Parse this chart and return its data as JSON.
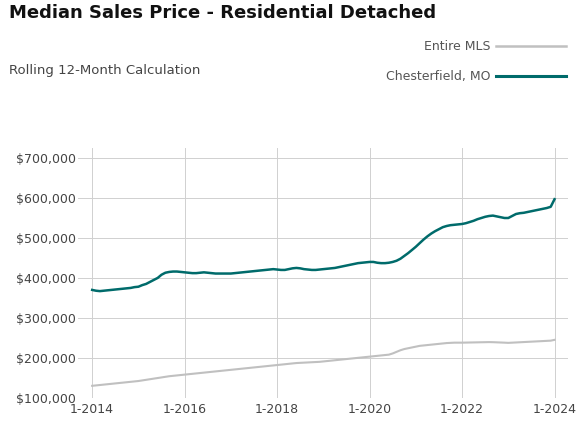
{
  "title": "Median Sales Price - Residential Detached",
  "subtitle": "Rolling 12-Month Calculation",
  "legend_labels": [
    "Entire MLS",
    "Chesterfield, MO"
  ],
  "mls_color": "#c0c0c0",
  "chesterfield_color": "#006b6b",
  "background_color": "#ffffff",
  "grid_color": "#d0d0d0",
  "title_fontsize": 13,
  "subtitle_fontsize": 9.5,
  "legend_fontsize": 9,
  "tick_fontsize": 9,
  "ylim": [
    100000,
    725000
  ],
  "yticks": [
    100000,
    200000,
    300000,
    400000,
    500000,
    600000,
    700000
  ],
  "xtick_years": [
    2014,
    2016,
    2018,
    2020,
    2022,
    2024
  ],
  "xlim_left": 2013.7,
  "xlim_right": 2024.3,
  "chesterfield_x": [
    2014.0,
    2014.083,
    2014.167,
    2014.25,
    2014.333,
    2014.417,
    2014.5,
    2014.583,
    2014.667,
    2014.75,
    2014.833,
    2014.917,
    2015.0,
    2015.083,
    2015.167,
    2015.25,
    2015.333,
    2015.417,
    2015.5,
    2015.583,
    2015.667,
    2015.75,
    2015.833,
    2015.917,
    2016.0,
    2016.083,
    2016.167,
    2016.25,
    2016.333,
    2016.417,
    2016.5,
    2016.583,
    2016.667,
    2016.75,
    2016.833,
    2016.917,
    2017.0,
    2017.083,
    2017.167,
    2017.25,
    2017.333,
    2017.417,
    2017.5,
    2017.583,
    2017.667,
    2017.75,
    2017.833,
    2017.917,
    2018.0,
    2018.083,
    2018.167,
    2018.25,
    2018.333,
    2018.417,
    2018.5,
    2018.583,
    2018.667,
    2018.75,
    2018.833,
    2018.917,
    2019.0,
    2019.083,
    2019.167,
    2019.25,
    2019.333,
    2019.417,
    2019.5,
    2019.583,
    2019.667,
    2019.75,
    2019.833,
    2019.917,
    2020.0,
    2020.083,
    2020.167,
    2020.25,
    2020.333,
    2020.417,
    2020.5,
    2020.583,
    2020.667,
    2020.75,
    2020.833,
    2020.917,
    2021.0,
    2021.083,
    2021.167,
    2021.25,
    2021.333,
    2021.417,
    2021.5,
    2021.583,
    2021.667,
    2021.75,
    2021.833,
    2021.917,
    2022.0,
    2022.083,
    2022.167,
    2022.25,
    2022.333,
    2022.417,
    2022.5,
    2022.583,
    2022.667,
    2022.75,
    2022.833,
    2022.917,
    2023.0,
    2023.083,
    2023.167,
    2023.25,
    2023.333,
    2023.417,
    2023.5,
    2023.583,
    2023.667,
    2023.75,
    2023.833,
    2023.917,
    2024.0
  ],
  "chesterfield_y": [
    370000,
    368000,
    367000,
    368000,
    369000,
    370000,
    371000,
    372000,
    373000,
    374000,
    375000,
    377000,
    378000,
    382000,
    385000,
    390000,
    395000,
    400000,
    408000,
    413000,
    415000,
    416000,
    416000,
    415000,
    414000,
    413000,
    412000,
    412000,
    413000,
    414000,
    413000,
    412000,
    411000,
    411000,
    411000,
    411000,
    411000,
    412000,
    413000,
    414000,
    415000,
    416000,
    417000,
    418000,
    419000,
    420000,
    421000,
    422000,
    421000,
    420000,
    420000,
    422000,
    424000,
    425000,
    424000,
    422000,
    421000,
    420000,
    420000,
    421000,
    422000,
    423000,
    424000,
    425000,
    427000,
    429000,
    431000,
    433000,
    435000,
    437000,
    438000,
    439000,
    440000,
    440000,
    438000,
    437000,
    437000,
    438000,
    440000,
    443000,
    448000,
    455000,
    462000,
    470000,
    478000,
    487000,
    496000,
    504000,
    511000,
    517000,
    522000,
    527000,
    530000,
    532000,
    533000,
    534000,
    535000,
    537000,
    540000,
    543000,
    547000,
    550000,
    553000,
    555000,
    556000,
    554000,
    552000,
    550000,
    550000,
    555000,
    560000,
    562000,
    563000,
    565000,
    567000,
    569000,
    571000,
    573000,
    575000,
    578000,
    597000
  ],
  "mls_x": [
    2014.0,
    2014.083,
    2014.167,
    2014.25,
    2014.333,
    2014.417,
    2014.5,
    2014.583,
    2014.667,
    2014.75,
    2014.833,
    2014.917,
    2015.0,
    2015.083,
    2015.167,
    2015.25,
    2015.333,
    2015.417,
    2015.5,
    2015.583,
    2015.667,
    2015.75,
    2015.833,
    2015.917,
    2016.0,
    2016.083,
    2016.167,
    2016.25,
    2016.333,
    2016.417,
    2016.5,
    2016.583,
    2016.667,
    2016.75,
    2016.833,
    2016.917,
    2017.0,
    2017.083,
    2017.167,
    2017.25,
    2017.333,
    2017.417,
    2017.5,
    2017.583,
    2017.667,
    2017.75,
    2017.833,
    2017.917,
    2018.0,
    2018.083,
    2018.167,
    2018.25,
    2018.333,
    2018.417,
    2018.5,
    2018.583,
    2018.667,
    2018.75,
    2018.833,
    2018.917,
    2019.0,
    2019.083,
    2019.167,
    2019.25,
    2019.333,
    2019.417,
    2019.5,
    2019.583,
    2019.667,
    2019.75,
    2019.833,
    2019.917,
    2020.0,
    2020.083,
    2020.167,
    2020.25,
    2020.333,
    2020.417,
    2020.5,
    2020.583,
    2020.667,
    2020.75,
    2020.833,
    2020.917,
    2021.0,
    2021.083,
    2021.167,
    2021.25,
    2021.333,
    2021.417,
    2021.5,
    2021.583,
    2021.667,
    2021.75,
    2021.833,
    2021.917,
    2022.0,
    2022.083,
    2022.167,
    2022.25,
    2022.333,
    2022.417,
    2022.5,
    2022.583,
    2022.667,
    2022.75,
    2022.833,
    2022.917,
    2023.0,
    2023.083,
    2023.167,
    2023.25,
    2023.333,
    2023.417,
    2023.5,
    2023.583,
    2023.667,
    2023.75,
    2023.833,
    2023.917,
    2024.0
  ],
  "mls_y": [
    130000,
    131000,
    132000,
    133000,
    134000,
    135000,
    136000,
    137000,
    138000,
    139000,
    140000,
    141000,
    142000,
    143500,
    145000,
    146500,
    148000,
    149500,
    151000,
    152500,
    154000,
    155000,
    156000,
    157000,
    158000,
    159000,
    160000,
    161000,
    162000,
    163000,
    164000,
    165000,
    166000,
    167000,
    168000,
    169000,
    170000,
    171000,
    172000,
    173000,
    174000,
    175000,
    176000,
    177000,
    178000,
    179000,
    180000,
    181000,
    182000,
    183000,
    184000,
    185000,
    186000,
    187000,
    187500,
    188000,
    188500,
    189000,
    189500,
    190000,
    191000,
    192000,
    193000,
    194000,
    195000,
    196000,
    197000,
    198000,
    199000,
    200000,
    201000,
    202000,
    203000,
    204000,
    205000,
    206000,
    207000,
    208000,
    211000,
    215000,
    219000,
    222000,
    224000,
    226000,
    228000,
    230000,
    231000,
    232000,
    233000,
    234000,
    235000,
    236000,
    237000,
    237500,
    238000,
    238000,
    238000,
    238200,
    238400,
    238600,
    238800,
    239000,
    239200,
    239400,
    239200,
    238800,
    238400,
    238000,
    237500,
    238000,
    238500,
    239000,
    239500,
    240000,
    240500,
    241000,
    241500,
    242000,
    242500,
    243000,
    245000
  ]
}
